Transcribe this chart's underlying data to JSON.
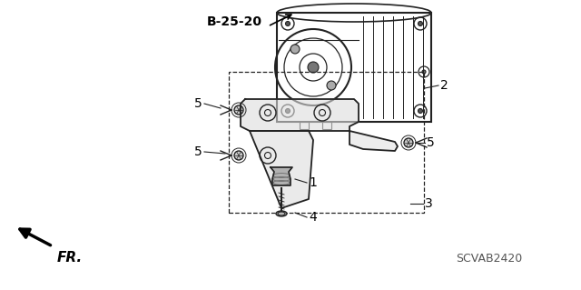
{
  "bg_color": "#ffffff",
  "line_color": "#222222",
  "dark_color": "#000000",
  "label_b2520": "B-25-20",
  "label_2": "2",
  "label_1": "1",
  "label_3": "3",
  "label_4": "4",
  "label_5": "5",
  "label_fr": "FR.",
  "diagram_code": "SCVAB2420",
  "title_fontsize": 10,
  "annotation_fontsize": 10,
  "small_fontsize": 9
}
